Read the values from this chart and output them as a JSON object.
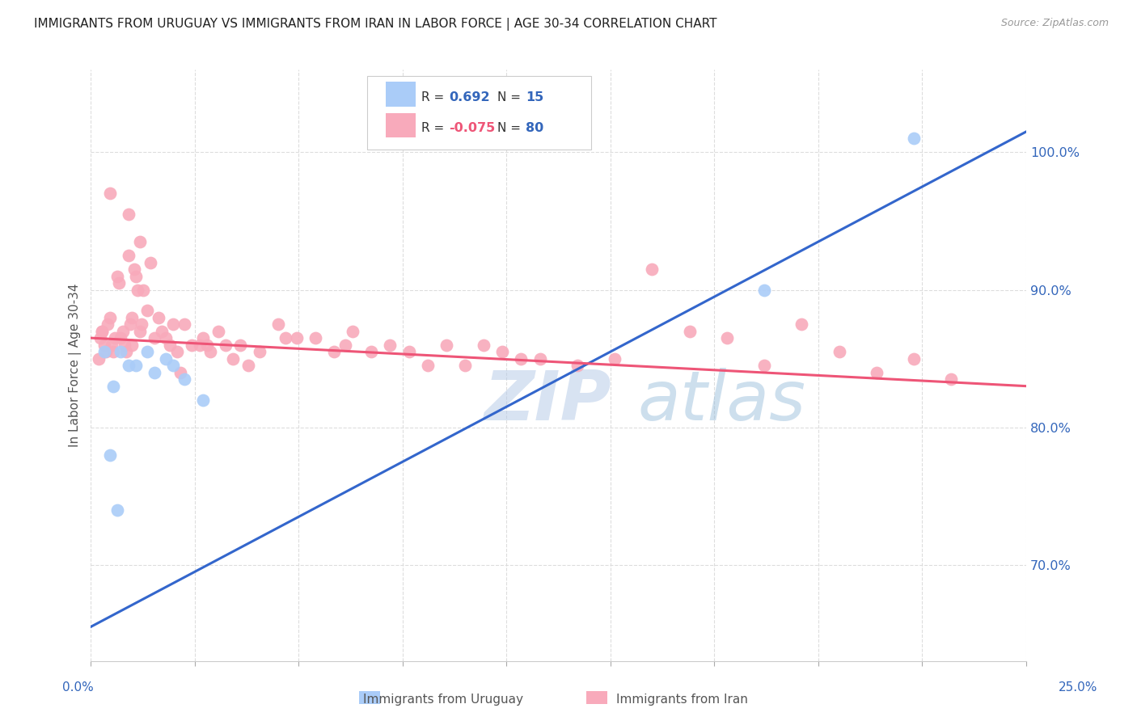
{
  "title": "IMMIGRANTS FROM URUGUAY VS IMMIGRANTS FROM IRAN IN LABOR FORCE | AGE 30-34 CORRELATION CHART",
  "source": "Source: ZipAtlas.com",
  "ylabel": "In Labor Force | Age 30-34",
  "xlim": [
    0.0,
    25.0
  ],
  "ylim": [
    63.0,
    106.0
  ],
  "right_y_ticks": [
    70.0,
    80.0,
    90.0,
    100.0
  ],
  "right_y_tick_labels": [
    "70.0%",
    "80.0%",
    "90.0%",
    "100.0%"
  ],
  "legend_R_uruguay": "0.692",
  "legend_N_uruguay": "15",
  "legend_R_iran": "-0.075",
  "legend_N_iran": "80",
  "uruguay_color": "#aaccf8",
  "iran_color": "#f8aabb",
  "trend_uruguay_color": "#3366cc",
  "trend_iran_color": "#ee5577",
  "background_color": "#ffffff",
  "grid_color": "#dddddd",
  "title_color": "#222222",
  "axis_label_color": "#3366bb",
  "watermark_color": "#c5d8f0",
  "watermark": "ZIPatlas",
  "uru_trend_x0": 0.0,
  "uru_trend_y0": 65.5,
  "uru_trend_x1": 25.0,
  "uru_trend_y1": 101.5,
  "iran_trend_x0": 0.0,
  "iran_trend_y0": 86.5,
  "iran_trend_x1": 25.0,
  "iran_trend_y1": 83.0
}
